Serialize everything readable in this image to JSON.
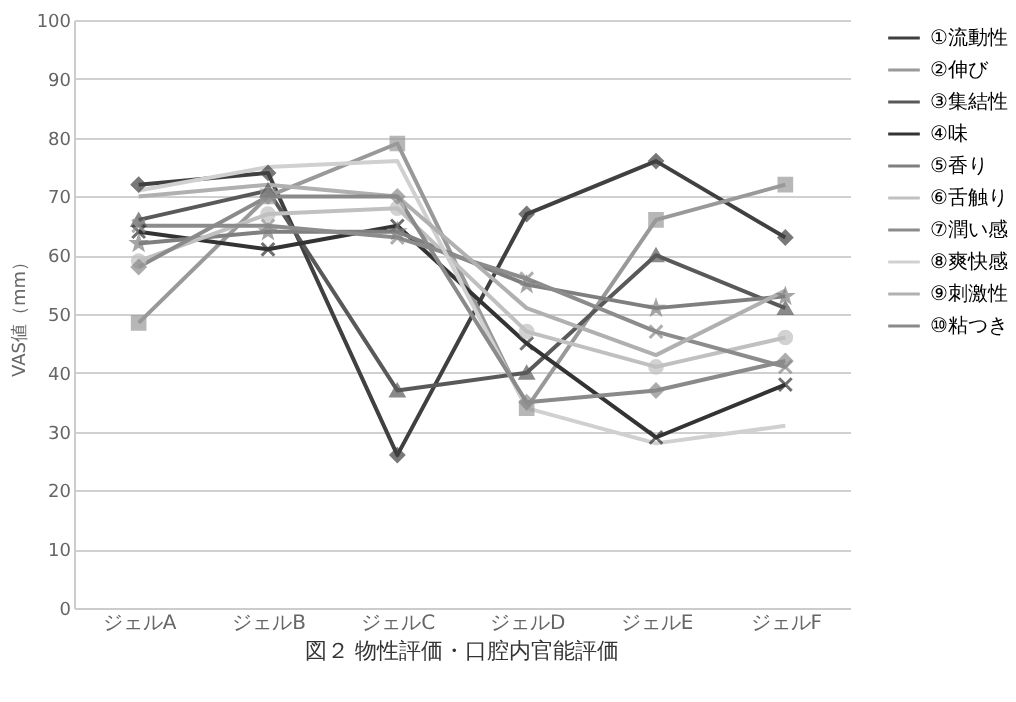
{
  "chart_data": {
    "type": "line",
    "title": "図２ 物性評価・口腔内官能評価",
    "ylabel": "VAS値（mm）",
    "categories": [
      "ジェルA",
      "ジェルB",
      "ジェルC",
      "ジェルD",
      "ジェルE",
      "ジェルF"
    ],
    "ylim": [
      0,
      100
    ],
    "yticks": [
      0,
      10,
      20,
      30,
      40,
      50,
      60,
      70,
      80,
      90,
      100
    ],
    "grid": "y",
    "legend": "right",
    "series": [
      {
        "name": "①流動性",
        "color": "#404040",
        "marker": "diamond",
        "values": [
          72,
          74,
          26,
          67,
          76,
          63
        ]
      },
      {
        "name": "②伸び",
        "color": "#999999",
        "marker": "square",
        "values": [
          48.5,
          70,
          79,
          34,
          66,
          72
        ]
      },
      {
        "name": "③集結性",
        "color": "#595959",
        "marker": "triangle",
        "values": [
          66,
          71,
          37,
          40,
          60,
          51
        ]
      },
      {
        "name": "④味",
        "color": "#333333",
        "marker": "cross",
        "values": [
          64,
          61,
          65,
          45,
          29,
          38
        ]
      },
      {
        "name": "⑤香り",
        "color": "#7f7f7f",
        "marker": "star",
        "values": [
          62,
          64,
          64,
          55,
          51,
          53
        ]
      },
      {
        "name": "⑥舌触り",
        "color": "#c0c0c0",
        "marker": "circle",
        "values": [
          59,
          67,
          68,
          47,
          41,
          46
        ]
      },
      {
        "name": "⑦潤い感",
        "color": "#8c8c8c",
        "marker": "cross",
        "values": [
          65,
          65,
          63,
          56,
          47,
          41
        ]
      },
      {
        "name": "⑧爽快感",
        "color": "#d0d0d0",
        "marker": "none",
        "values": [
          71,
          75,
          76,
          34,
          28,
          31
        ]
      },
      {
        "name": "⑨刺激性",
        "color": "#b0b0b0",
        "marker": "none",
        "values": [
          70,
          72,
          70,
          51,
          43,
          54
        ]
      },
      {
        "name": "⑩粘つき",
        "color": "#8a8a8a",
        "marker": "diamond",
        "values": [
          58,
          70,
          70,
          35,
          37,
          42
        ]
      }
    ]
  }
}
